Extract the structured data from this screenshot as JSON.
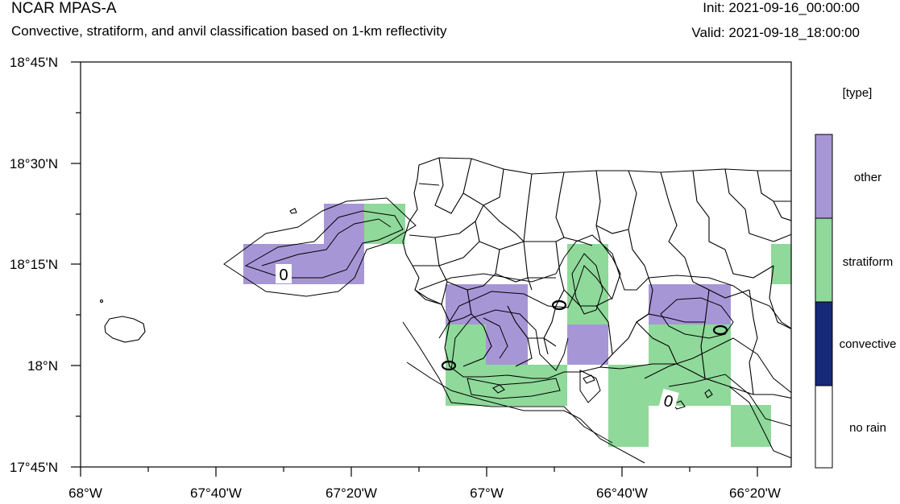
{
  "header": {
    "title": "NCAR MPAS-A",
    "subtitle": "Convective, stratiform, and anvil classification based on 1-km reflectivity",
    "init": "Init: 2021-09-16_00:00:00",
    "valid": "Valid: 2021-09-18_18:00:00"
  },
  "axes": {
    "y_ticks": [
      "18°45'N",
      "18°30'N",
      "18°15'N",
      "18°N",
      "17°45'N"
    ],
    "x_ticks": [
      "68°W",
      "67°40'W",
      "67°20'W",
      "67°W",
      "66°40'W",
      "66°20'W"
    ]
  },
  "legend": {
    "title": "[type]",
    "items": [
      {
        "label": "other",
        "color": "#a796d6"
      },
      {
        "label": "stratiform",
        "color": "#8fd99a"
      },
      {
        "label": "convective",
        "color": "#162878"
      },
      {
        "label": "no rain",
        "color": "#ffffff"
      }
    ]
  },
  "contour_labels": [
    "0",
    "0"
  ]
}
